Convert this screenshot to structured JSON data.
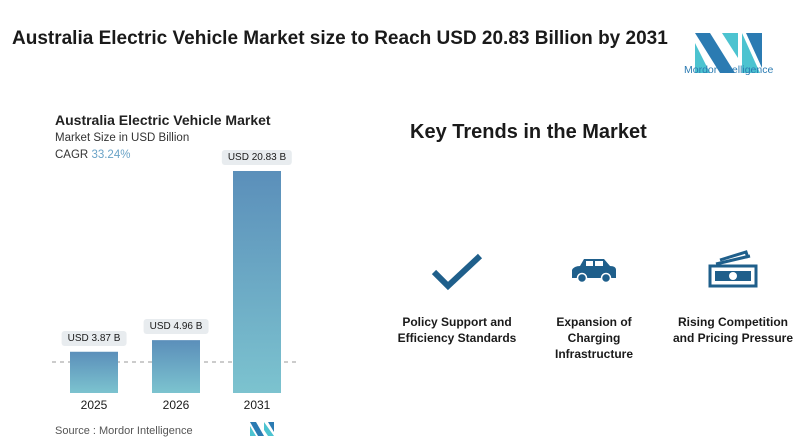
{
  "header": {
    "title": "Australia Electric Vehicle Market size to Reach USD 20.83 Billion by 2031",
    "logo_text": "Mordor Intelligence"
  },
  "chart_data": {
    "type": "bar",
    "title": "Australia Electric Vehicle Market",
    "subtitle": "Market Size in USD Billion",
    "cagr_label": "CAGR",
    "cagr_value": "33.24%",
    "categories": [
      "2025",
      "2026",
      "2031"
    ],
    "values": [
      3.87,
      4.96,
      20.83
    ],
    "data_labels": [
      "USD 3.87 B",
      "USD 4.96 B",
      "USD 20.83 B"
    ],
    "ylim": [
      0,
      20.83
    ],
    "source": "Source :  Mordor Intelligence"
  },
  "trends": {
    "heading": "Key Trends in the Market",
    "items": [
      {
        "icon": "checkmark-icon",
        "label": "Policy Support and Efficiency Standards"
      },
      {
        "icon": "car-icon",
        "label": "Expansion of Charging Infrastructure"
      },
      {
        "icon": "money-icon",
        "label": "Rising Competition and Pricing Pressure"
      }
    ]
  },
  "colors": {
    "bar_top": "#5b8fba",
    "bar_bottom": "#7cc3cf",
    "accent": "#2b7bb2",
    "icon": "#1f5f8b"
  }
}
